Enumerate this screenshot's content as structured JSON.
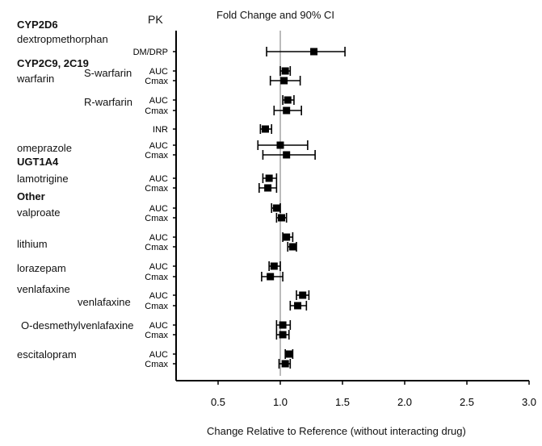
{
  "chart_data": {
    "type": "forest",
    "title": "Fold Change and 90% CI",
    "column_header": "PK",
    "xlabel": "Change Relative to Reference (without interacting drug)",
    "xlim": [
      0.16,
      3.0
    ],
    "xticks": [
      "0.5",
      "1.0",
      "1.5",
      "2.0",
      "2.5",
      "3.0"
    ],
    "reference_line": 1.0,
    "groups": [
      {
        "label": "CYP2D6"
      },
      {
        "label": "CYP2C9, 2C19"
      },
      {
        "label": "UGT1A4"
      },
      {
        "label": "Other"
      }
    ],
    "drugs": [
      "dextropmethorphan",
      "warfarin",
      "omeprazole",
      "lamotrigine",
      "valproate",
      "lithium",
      "lorazepam",
      "venlafaxine",
      "escitalopram"
    ],
    "subdrugs": [
      "S-warfarin",
      "R-warfarin",
      "venlafaxine",
      "O-desmethylvenlafaxine"
    ],
    "rows": [
      {
        "pk": "DM/DRP",
        "value": 1.27,
        "lo": 0.89,
        "hi": 1.52
      },
      {
        "pk": "AUC",
        "value": 1.04,
        "lo": 1.0,
        "hi": 1.08
      },
      {
        "pk": "Cmax",
        "value": 1.03,
        "lo": 0.92,
        "hi": 1.16
      },
      {
        "pk": "AUC",
        "value": 1.06,
        "lo": 1.02,
        "hi": 1.11
      },
      {
        "pk": "Cmax",
        "value": 1.05,
        "lo": 0.95,
        "hi": 1.17
      },
      {
        "pk": "INR",
        "value": 0.88,
        "lo": 0.84,
        "hi": 0.93
      },
      {
        "pk": "AUC",
        "value": 1.0,
        "lo": 0.82,
        "hi": 1.22
      },
      {
        "pk": "Cmax",
        "value": 1.05,
        "lo": 0.86,
        "hi": 1.28
      },
      {
        "pk": "AUC",
        "value": 0.91,
        "lo": 0.86,
        "hi": 0.97
      },
      {
        "pk": "Cmax",
        "value": 0.9,
        "lo": 0.83,
        "hi": 0.97
      },
      {
        "pk": "AUC",
        "value": 0.97,
        "lo": 0.93,
        "hi": 1.0
      },
      {
        "pk": "Cmax",
        "value": 1.01,
        "lo": 0.97,
        "hi": 1.05
      },
      {
        "pk": "AUC",
        "value": 1.05,
        "lo": 1.02,
        "hi": 1.1
      },
      {
        "pk": "Cmax",
        "value": 1.1,
        "lo": 1.06,
        "hi": 1.13
      },
      {
        "pk": "AUC",
        "value": 0.95,
        "lo": 0.91,
        "hi": 1.0
      },
      {
        "pk": "Cmax",
        "value": 0.92,
        "lo": 0.85,
        "hi": 1.02
      },
      {
        "pk": "AUC",
        "value": 1.18,
        "lo": 1.13,
        "hi": 1.23
      },
      {
        "pk": "Cmax",
        "value": 1.14,
        "lo": 1.08,
        "hi": 1.21
      },
      {
        "pk": "AUC",
        "value": 1.02,
        "lo": 0.97,
        "hi": 1.08
      },
      {
        "pk": "Cmax",
        "value": 1.02,
        "lo": 0.97,
        "hi": 1.07
      },
      {
        "pk": "AUC",
        "value": 1.07,
        "lo": 1.04,
        "hi": 1.1
      },
      {
        "pk": "Cmax",
        "value": 1.04,
        "lo": 0.99,
        "hi": 1.08
      }
    ]
  }
}
